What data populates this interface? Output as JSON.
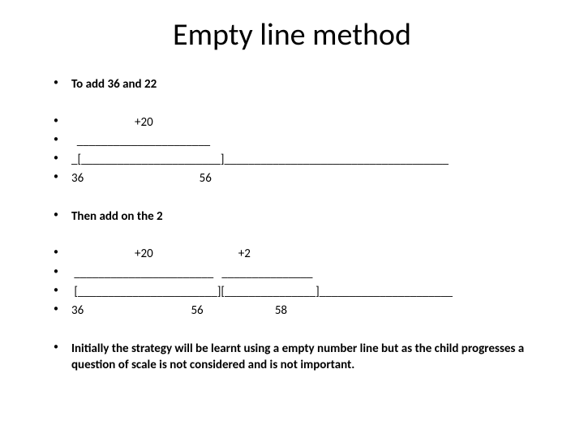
{
  "title": "Empty line method",
  "step1": {
    "heading": "To add 36 and 22",
    "jump_label": "                       +20",
    "arc_line": "  ______________________",
    "bracket_line": "_[_______________________]_____________________________________",
    "numbers_line": "36                                          56"
  },
  "step2": {
    "heading": "Then add on the 2",
    "jump_label": "                       +20                               +2",
    "arc_line": " _______________________   _______________",
    "bracket_line": " [_______________________][_______________]______________________",
    "numbers_line": "36                                       56                          58"
  },
  "note": "Initially the strategy will be learnt using a empty number line but as the child progresses a question of scale is not considered and is not important.",
  "colors": {
    "background": "#ffffff",
    "text": "#000000"
  },
  "typography": {
    "title_fontsize": 38,
    "body_fontsize": 15,
    "font_family": "Calibri"
  }
}
